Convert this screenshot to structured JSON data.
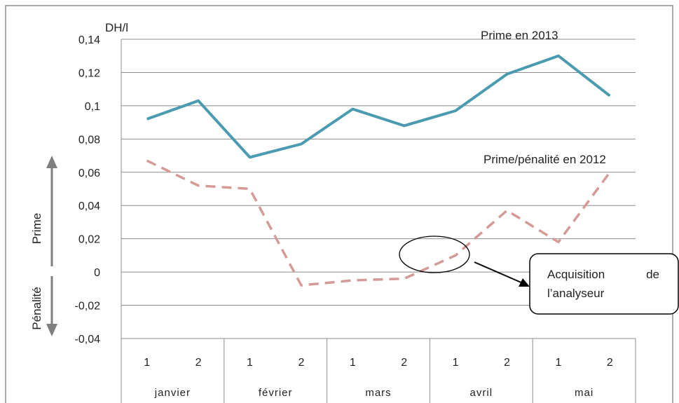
{
  "chart_data": {
    "type": "line",
    "ylabel": "DH/l",
    "ylim": [
      -0.04,
      0.14
    ],
    "yticks": [
      "-0,04",
      "-0,02",
      "0",
      "0,02",
      "0,04",
      "0,06",
      "0,08",
      "0,1",
      "0,12",
      "0,14"
    ],
    "grid": true,
    "x_sub": [
      "1",
      "2",
      "1",
      "2",
      "1",
      "2",
      "1",
      "2",
      "1",
      "2"
    ],
    "x_groups": [
      "janvier",
      "février",
      "mars",
      "avril",
      "mai"
    ],
    "series": [
      {
        "name": "Prime en 2013",
        "style": "solid",
        "color": "#4a9bb0",
        "values": [
          0.092,
          0.103,
          0.069,
          0.077,
          0.098,
          0.088,
          0.097,
          0.119,
          0.13,
          0.106
        ]
      },
      {
        "name": "Prime/pénalité en 2012",
        "style": "dashed",
        "color": "#d39a96",
        "values": [
          0.067,
          0.052,
          0.05,
          -0.008,
          -0.005,
          -0.004,
          0.01,
          0.037,
          0.018,
          0.06
        ]
      }
    ],
    "side_labels": {
      "positive": "Prime",
      "negative": "Pénalité"
    },
    "annotation": {
      "line1": "Acquisition",
      "line1b": "de",
      "line2": "l’analyseur"
    }
  }
}
